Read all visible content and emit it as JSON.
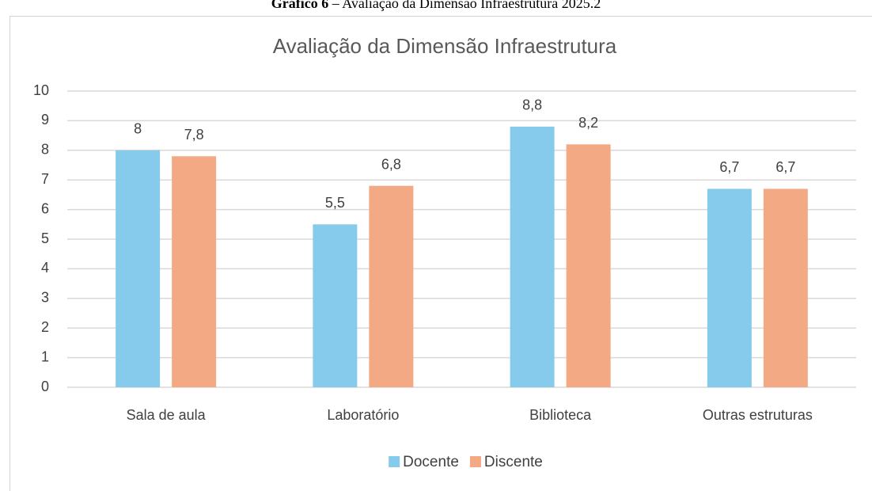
{
  "caption": {
    "label": "Gráfico 6",
    "text": " – Avaliação da Dimensão Infraestrutura 2025.2"
  },
  "chart_data": {
    "type": "bar",
    "title": "Avaliação da Dimensão Infraestrutura",
    "categories": [
      "Sala de aula",
      "Laboratório",
      "Biblioteca",
      "Outras estruturas"
    ],
    "series": [
      {
        "name": "Docente",
        "color": "#87cbec",
        "values": [
          8,
          5.5,
          8.8,
          6.7
        ],
        "value_labels": [
          "8",
          "5,5",
          "8,8",
          "6,7"
        ]
      },
      {
        "name": "Discente",
        "color": "#f3a983",
        "values": [
          7.8,
          6.8,
          8.2,
          6.7
        ],
        "value_labels": [
          "7,8",
          "6,8",
          "8,2",
          "6,7"
        ]
      }
    ],
    "ylim": [
      0,
      10
    ],
    "yticks": [
      0,
      1,
      2,
      3,
      4,
      5,
      6,
      7,
      8,
      9,
      10
    ],
    "grid": true,
    "legend": "bottom"
  }
}
